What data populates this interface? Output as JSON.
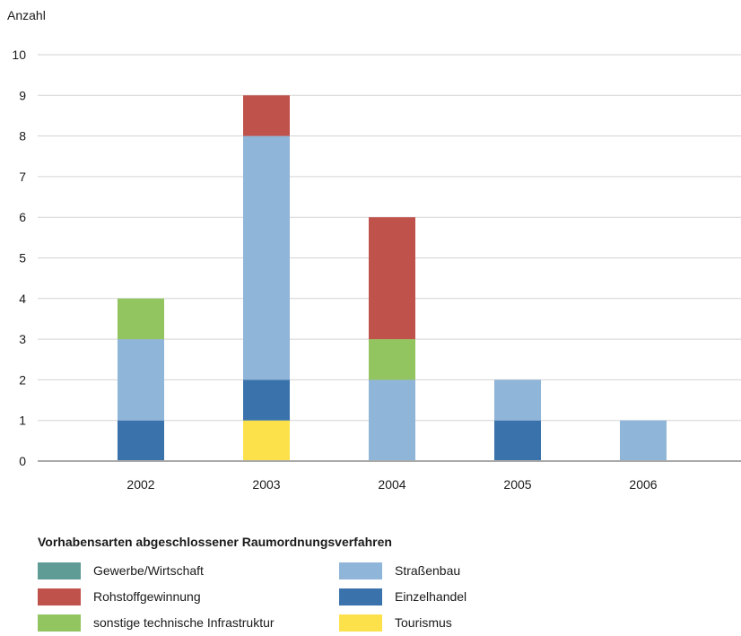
{
  "chart_data": {
    "type": "bar",
    "stacked": true,
    "title": "",
    "xlabel": "",
    "ylabel": "Anzahl",
    "ylim": [
      0,
      10
    ],
    "yticks": [
      0,
      1,
      2,
      3,
      4,
      5,
      6,
      7,
      8,
      9,
      10
    ],
    "categories": [
      "2002",
      "2003",
      "2004",
      "2005",
      "2006"
    ],
    "grid": true,
    "legend_title": "Vorhabensarten abgeschlossener Raumordnungsverfahren",
    "legend_position": "bottom",
    "series": [
      {
        "name": "Tourismus",
        "color": "#fde14b",
        "values": [
          0,
          1,
          0,
          0,
          0
        ]
      },
      {
        "name": "Einzelhandel",
        "color": "#3a73ac",
        "values": [
          1,
          1,
          0,
          1,
          0
        ]
      },
      {
        "name": "Gewerbe/Wirtschaft",
        "color": "#5f9c96",
        "values": [
          0,
          0,
          0,
          0,
          0
        ]
      },
      {
        "name": "Straßenbau",
        "color": "#8fb5d9",
        "values": [
          2,
          6,
          2,
          1,
          1
        ]
      },
      {
        "name": "sonstige technische Infrastruktur",
        "color": "#92c45f",
        "values": [
          1,
          0,
          1,
          0,
          0
        ]
      },
      {
        "name": "Rohstoffgewinnung",
        "color": "#c0524c",
        "values": [
          0,
          1,
          3,
          0,
          0
        ]
      }
    ],
    "legend_order": [
      "Gewerbe/Wirtschaft",
      "Straßenbau",
      "Rohstoffgewinnung",
      "Einzelhandel",
      "sonstige technische Infrastruktur",
      "Tourismus"
    ]
  }
}
